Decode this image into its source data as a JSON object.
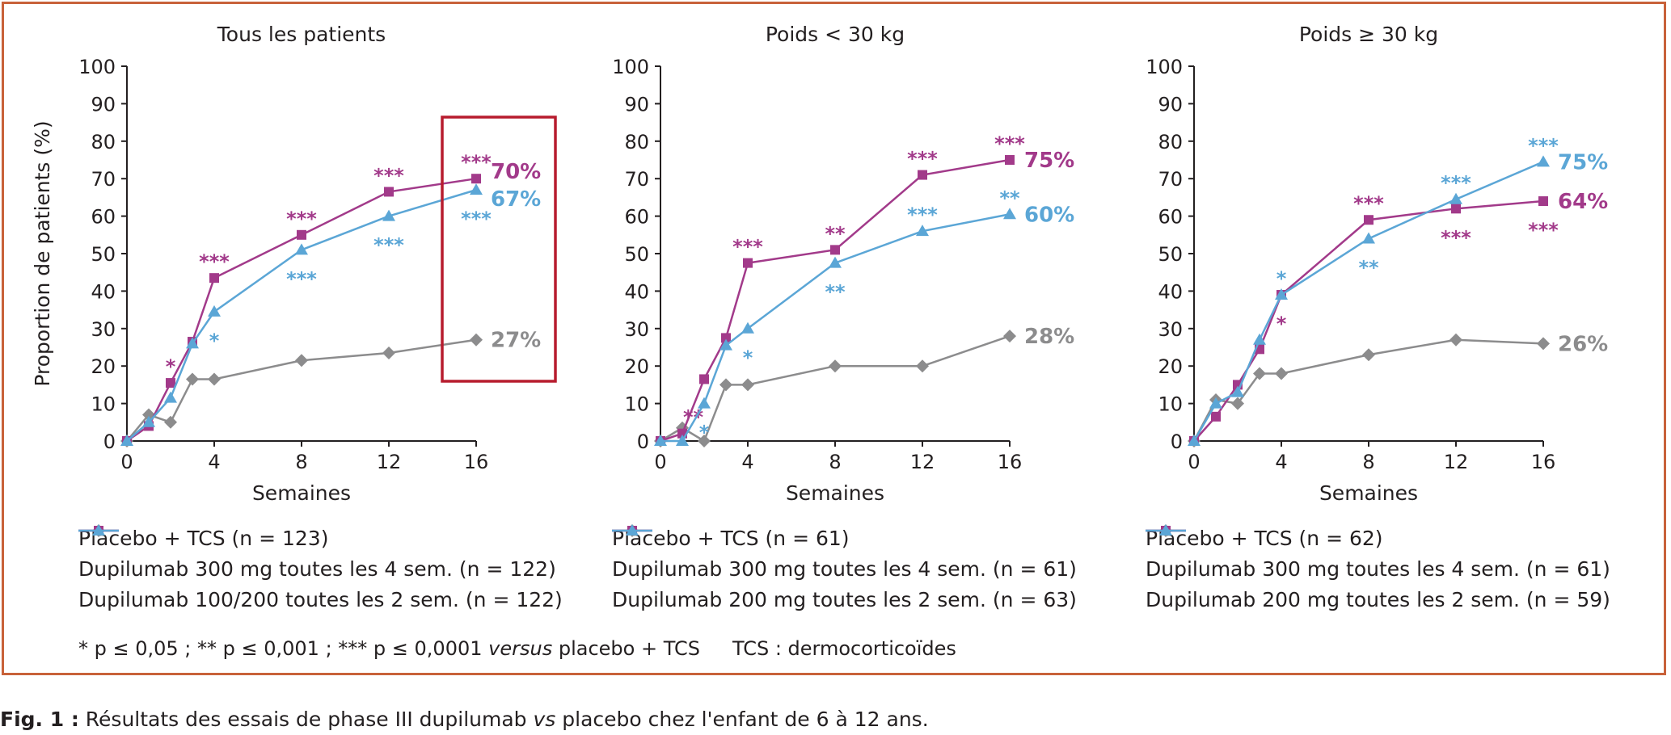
{
  "caption": {
    "label": "Fig. 1 :",
    "text": " Résultats des essais de phase III dupilumab ",
    "italic": "vs",
    "text2": " placebo chez l'enfant de 6 à 12 ans."
  },
  "footnote": {
    "part1": "* p ≤ 0,05 ; ** p ≤ 0,001 ; *** p ≤ 0,0001 ",
    "italic": "versus",
    "part2": " placebo + TCS",
    "tcs": "TCS : dermocorticoïdes"
  },
  "colors": {
    "placebo": "#8c8c8d",
    "d300": "#a23a8a",
    "d200": "#5ba6d6",
    "frame": "#c8623a",
    "highlight": "#b71c2e"
  },
  "chart_data": [
    {
      "type": "line",
      "title": "Tous les patients",
      "xlabel": "Semaines",
      "ylabel": "Proportion de patients (%)",
      "xticks": [
        0,
        4,
        8,
        12,
        16
      ],
      "yticks": [
        0,
        10,
        20,
        30,
        40,
        50,
        60,
        70,
        80,
        90,
        100
      ],
      "xlim": [
        0,
        16
      ],
      "ylim": [
        0,
        100
      ],
      "series": [
        {
          "name": "Placebo + TCS (n = 123)",
          "marker": "diamond",
          "color": "#8c8c8d",
          "x": [
            0,
            1,
            2,
            3,
            4,
            8,
            12,
            16
          ],
          "y": [
            0,
            7,
            5,
            16.5,
            16.5,
            21.5,
            23.5,
            27
          ],
          "end_label": "27%",
          "sig": []
        },
        {
          "name": "Dupilumab 300 mg toutes les 4 sem. (n = 122)",
          "marker": "square",
          "color": "#a23a8a",
          "x": [
            0,
            1,
            2,
            3,
            4,
            8,
            12,
            16
          ],
          "y": [
            0,
            4,
            15.5,
            26.5,
            43.5,
            55,
            66.5,
            70
          ],
          "end_label": "70%",
          "sig": [
            {
              "x": 2,
              "text": "*",
              "pos": "above"
            },
            {
              "x": 4,
              "text": "***",
              "pos": "above"
            },
            {
              "x": 8,
              "text": "***",
              "pos": "above"
            },
            {
              "x": 12,
              "text": "***",
              "pos": "above"
            },
            {
              "x": 16,
              "text": "***",
              "pos": "above"
            }
          ]
        },
        {
          "name": "Dupilumab 100/200 toutes les 2 sem. (n = 122)",
          "marker": "triangle",
          "color": "#5ba6d6",
          "x": [
            0,
            1,
            2,
            3,
            4,
            8,
            12,
            16
          ],
          "y": [
            0,
            5,
            11.5,
            26,
            34.5,
            51,
            60,
            67
          ],
          "end_label": "67%",
          "sig": [
            {
              "x": 4,
              "text": "*",
              "pos": "below"
            },
            {
              "x": 8,
              "text": "***",
              "pos": "below"
            },
            {
              "x": 12,
              "text": "***",
              "pos": "below"
            },
            {
              "x": 16,
              "text": "***",
              "pos": "below"
            }
          ]
        }
      ]
    },
    {
      "type": "line",
      "title": "Poids < 30 kg",
      "xlabel": "Semaines",
      "ylabel": "",
      "xticks": [
        0,
        4,
        8,
        12,
        16
      ],
      "yticks": [
        0,
        10,
        20,
        30,
        40,
        50,
        60,
        70,
        80,
        90,
        100
      ],
      "xlim": [
        0,
        16
      ],
      "ylim": [
        0,
        100
      ],
      "series": [
        {
          "name": "Placebo + TCS (n = 61)",
          "marker": "diamond",
          "color": "#8c8c8d",
          "x": [
            0,
            1,
            2,
            3,
            4,
            8,
            12,
            16
          ],
          "y": [
            0,
            3.5,
            0,
            15,
            15,
            20,
            20,
            28
          ],
          "end_label": "28%",
          "sig": []
        },
        {
          "name": "Dupilumab 300 mg toutes les 4 sem. (n = 61)",
          "marker": "square",
          "color": "#a23a8a",
          "x": [
            0,
            1,
            2,
            3,
            4,
            8,
            12,
            16
          ],
          "y": [
            0,
            2,
            16.5,
            27.5,
            47.5,
            51,
            71,
            75
          ],
          "end_label": "75%",
          "sig": [
            {
              "x": 1.5,
              "text": "**",
              "pos": "above"
            },
            {
              "x": 4,
              "text": "***",
              "pos": "above"
            },
            {
              "x": 8,
              "text": "**",
              "pos": "above"
            },
            {
              "x": 12,
              "text": "***",
              "pos": "above"
            },
            {
              "x": 16,
              "text": "***",
              "pos": "above"
            }
          ]
        },
        {
          "name": "Dupilumab 200 mg toutes les 2 sem. (n = 63)",
          "marker": "triangle",
          "color": "#5ba6d6",
          "x": [
            0,
            1,
            2,
            3,
            4,
            8,
            12,
            16
          ],
          "y": [
            0,
            0,
            10,
            25.5,
            30,
            47.5,
            56,
            60.5
          ],
          "end_label": "60%",
          "sig": [
            {
              "x": 2,
              "text": "*",
              "pos": "below"
            },
            {
              "x": 4,
              "text": "*",
              "pos": "below"
            },
            {
              "x": 8,
              "text": "**",
              "pos": "below"
            },
            {
              "x": 12,
              "text": "***",
              "pos": "above"
            },
            {
              "x": 16,
              "text": "**",
              "pos": "above"
            }
          ]
        }
      ]
    },
    {
      "type": "line",
      "title": "Poids ≥ 30 kg",
      "xlabel": "Semaines",
      "ylabel": "",
      "xticks": [
        0,
        4,
        8,
        12,
        16
      ],
      "yticks": [
        0,
        10,
        20,
        30,
        40,
        50,
        60,
        70,
        80,
        90,
        100
      ],
      "xlim": [
        0,
        16
      ],
      "ylim": [
        0,
        100
      ],
      "series": [
        {
          "name": "Placebo + TCS (n = 62)",
          "marker": "diamond",
          "color": "#8c8c8d",
          "x": [
            0,
            1,
            2,
            3,
            4,
            8,
            12,
            16
          ],
          "y": [
            0,
            11,
            10,
            18,
            18,
            23,
            27,
            26
          ],
          "end_label": "26%",
          "sig": []
        },
        {
          "name": "Dupilumab 300 mg toutes les 4 sem. (n = 61)",
          "marker": "square",
          "color": "#a23a8a",
          "x": [
            0,
            1,
            2,
            3,
            4,
            8,
            12,
            16
          ],
          "y": [
            0,
            6.5,
            15,
            24.5,
            39,
            59,
            62,
            64
          ],
          "end_label": "64%",
          "sig": [
            {
              "x": 4,
              "text": "*",
              "pos": "below"
            },
            {
              "x": 8,
              "text": "***",
              "pos": "above"
            },
            {
              "x": 12,
              "text": "***",
              "pos": "below"
            },
            {
              "x": 16,
              "text": "***",
              "pos": "below"
            }
          ]
        },
        {
          "name": "Dupilumab 200 mg toutes les 2 sem. (n = 59)",
          "marker": "triangle",
          "color": "#5ba6d6",
          "x": [
            0,
            1,
            2,
            3,
            4,
            8,
            12,
            16
          ],
          "y": [
            0,
            10,
            13,
            27,
            39,
            54,
            64.5,
            74.5
          ],
          "end_label": "75%",
          "sig": [
            {
              "x": 4,
              "text": "*",
              "pos": "above"
            },
            {
              "x": 8,
              "text": "**",
              "pos": "below"
            },
            {
              "x": 12,
              "text": "***",
              "pos": "above"
            },
            {
              "x": 16,
              "text": "***",
              "pos": "above"
            }
          ]
        }
      ]
    }
  ]
}
